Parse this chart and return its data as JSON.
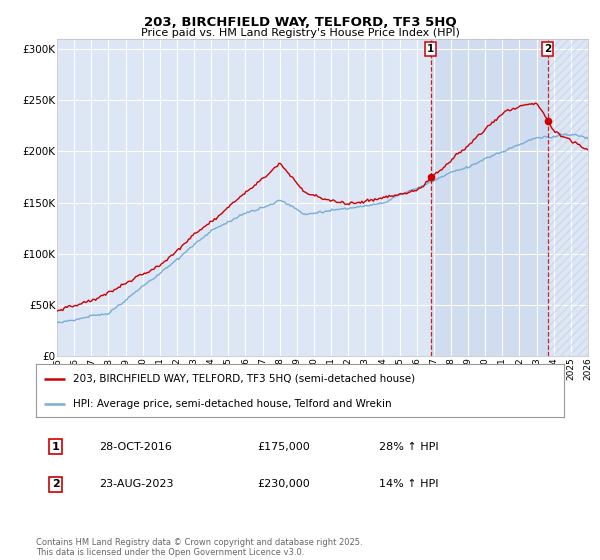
{
  "title": "203, BIRCHFIELD WAY, TELFORD, TF3 5HQ",
  "subtitle": "Price paid vs. HM Land Registry's House Price Index (HPI)",
  "legend_line1": "203, BIRCHFIELD WAY, TELFORD, TF3 5HQ (semi-detached house)",
  "legend_line2": "HPI: Average price, semi-detached house, Telford and Wrekin",
  "annotation1_date": "28-OCT-2016",
  "annotation1_price": "£175,000",
  "annotation1_hpi": "28% ↑ HPI",
  "annotation2_date": "23-AUG-2023",
  "annotation2_price": "£230,000",
  "annotation2_hpi": "14% ↑ HPI",
  "footer": "Contains HM Land Registry data © Crown copyright and database right 2025.\nThis data is licensed under the Open Government Licence v3.0.",
  "red_color": "#cc0000",
  "blue_color": "#7aadd4",
  "vline_color": "#cc0000",
  "background_color": "#ffffff",
  "plot_bg_color": "#dce6f5",
  "shade_color": "#c8d8ee",
  "grid_color": "#ffffff",
  "hatch_color": "#c0cce0",
  "ylim": [
    0,
    310000
  ],
  "yticks": [
    0,
    50000,
    100000,
    150000,
    200000,
    250000,
    300000
  ],
  "ytick_labels": [
    "£0",
    "£50K",
    "£100K",
    "£150K",
    "£200K",
    "£250K",
    "£300K"
  ],
  "year_start": 1995,
  "year_end": 2026,
  "sale1_year": 2016.83,
  "sale1_price": 175000,
  "sale2_year": 2023.65,
  "sale2_price": 230000,
  "marker_color": "#cc0000"
}
